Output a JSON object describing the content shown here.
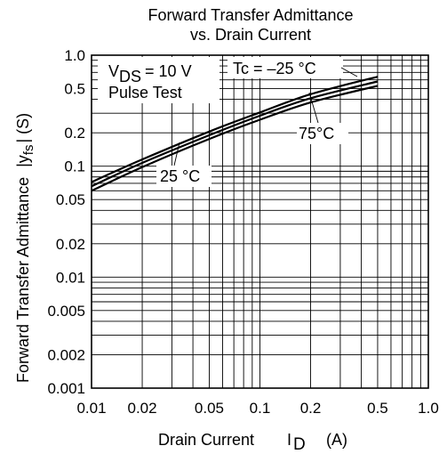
{
  "chart_data": {
    "type": "line",
    "title_line1": "Forward Transfer Admittance",
    "title_line2": "vs. Drain Current",
    "xlabel": "Drain Current",
    "xlabel_symbol": "I",
    "xlabel_sub": "D",
    "xlabel_unit": "(A)",
    "ylabel": "Forward Transfer Admittance",
    "ylabel_symbol": "|y",
    "ylabel_sub": "fs",
    "ylabel_unit": "| (S)",
    "x_scale": "log",
    "y_scale": "log",
    "xlim": [
      0.01,
      1.0
    ],
    "ylim": [
      0.001,
      1.0
    ],
    "grid": true,
    "x_tick_values": [
      0.01,
      0.02,
      0.05,
      0.1,
      0.2,
      0.5,
      1.0
    ],
    "x_tick_labels": [
      "0.01",
      "0.02",
      "0.05",
      "0.1",
      "0.2",
      "0.5",
      "1.0"
    ],
    "y_tick_values": [
      0.001,
      0.002,
      0.005,
      0.01,
      0.02,
      0.05,
      0.1,
      0.2,
      0.5,
      1.0
    ],
    "y_tick_labels": [
      "0.001",
      "0.002",
      "0.005",
      "0.01",
      "0.02",
      "0.05",
      "0.1",
      "0.2",
      "0.5",
      "1.0"
    ],
    "conditions": {
      "vds_prefix": "V",
      "vds_sub": "DS",
      "vds_value": "= 10 V",
      "pulse": "Pulse Test"
    },
    "series": [
      {
        "name": "Tc = –25 °C",
        "x": [
          0.01,
          0.02,
          0.05,
          0.1,
          0.2,
          0.5
        ],
        "values": [
          0.072,
          0.115,
          0.205,
          0.305,
          0.445,
          0.64
        ]
      },
      {
        "name": "25 °C",
        "x": [
          0.01,
          0.02,
          0.05,
          0.1,
          0.2,
          0.5
        ],
        "values": [
          0.066,
          0.107,
          0.19,
          0.285,
          0.41,
          0.58
        ]
      },
      {
        "name": "75°C",
        "x": [
          0.01,
          0.02,
          0.05,
          0.1,
          0.2,
          0.5
        ],
        "values": [
          0.06,
          0.098,
          0.176,
          0.262,
          0.375,
          0.53
        ]
      }
    ]
  }
}
